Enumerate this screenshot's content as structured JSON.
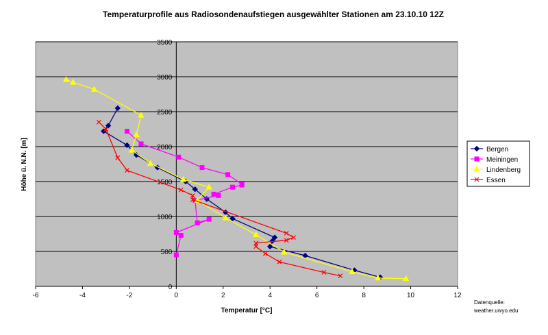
{
  "chart_data": {
    "type": "line",
    "title": "Temperaturprofile aus Radiosondenaufstiegen ausgewählter Stationen am 23.10.10 12Z",
    "xlabel": "Temperatur [°C]",
    "ylabel": "Höhe ü. N.N. [m]",
    "xlim": [
      -6,
      12
    ],
    "ylim": [
      0,
      3500
    ],
    "xticks": [
      "-6",
      "-4",
      "-2",
      "0",
      "2",
      "4",
      "6",
      "8",
      "10",
      "12"
    ],
    "yticks": [
      "0",
      "500",
      "1000",
      "1500",
      "2000",
      "2500",
      "3000",
      "3500"
    ],
    "grid": "horizontal",
    "plot_background": "#c0c0c0",
    "legend_position": "right",
    "series": [
      {
        "name": "Bergen",
        "color": "#000080",
        "marker": "diamond",
        "points": [
          [
            8.7,
            130
          ],
          [
            7.6,
            230
          ],
          [
            5.5,
            440
          ],
          [
            4.0,
            570
          ],
          [
            4.1,
            650
          ],
          [
            4.2,
            700
          ],
          [
            2.4,
            970
          ],
          [
            2.1,
            1060
          ],
          [
            1.3,
            1250
          ],
          [
            0.8,
            1390
          ],
          [
            0.4,
            1500
          ],
          [
            -0.8,
            1700
          ],
          [
            -1.7,
            1880
          ],
          [
            -2.1,
            2020
          ],
          [
            -3.1,
            2220
          ],
          [
            -2.9,
            2300
          ],
          [
            -2.5,
            2550
          ]
        ]
      },
      {
        "name": "Meiningen",
        "color": "#ff00ff",
        "marker": "square",
        "points": [
          [
            0,
            450
          ],
          [
            0.2,
            730
          ],
          [
            0,
            770
          ],
          [
            1.4,
            960
          ],
          [
            0.9,
            910
          ],
          [
            0.8,
            1230
          ],
          [
            1.8,
            1300
          ],
          [
            1.6,
            1320
          ],
          [
            2.4,
            1420
          ],
          [
            2.8,
            1450
          ],
          [
            2.8,
            1460
          ],
          [
            2.2,
            1600
          ],
          [
            1.1,
            1700
          ],
          [
            0.1,
            1850
          ],
          [
            -1.5,
            2040
          ],
          [
            -2.1,
            2220
          ]
        ]
      },
      {
        "name": "Lindenberg",
        "color": "#ffff00",
        "marker": "triangle",
        "points": [
          [
            9.8,
            110
          ],
          [
            8.6,
            120
          ],
          [
            7.5,
            210
          ],
          [
            4.6,
            490
          ],
          [
            3.4,
            740
          ],
          [
            2.1,
            980
          ],
          [
            0.9,
            1230
          ],
          [
            1.4,
            1420
          ],
          [
            0.3,
            1530
          ],
          [
            -1.1,
            1760
          ],
          [
            -1.9,
            1950
          ],
          [
            -1.7,
            2170
          ],
          [
            -1.5,
            2450
          ],
          [
            -3.5,
            2820
          ],
          [
            -4.4,
            2920
          ],
          [
            -4.7,
            2960
          ]
        ]
      },
      {
        "name": "Essen",
        "color": "#ff0000",
        "marker": "x",
        "points": [
          [
            7.0,
            150
          ],
          [
            6.3,
            200
          ],
          [
            4.4,
            350
          ],
          [
            3.8,
            470
          ],
          [
            3.4,
            570
          ],
          [
            3.4,
            620
          ],
          [
            4.7,
            660
          ],
          [
            5.0,
            700
          ],
          [
            4.7,
            760
          ],
          [
            0.7,
            1240
          ],
          [
            0.7,
            1300
          ],
          [
            0.2,
            1380
          ],
          [
            -2.1,
            1660
          ],
          [
            -2.5,
            1840
          ],
          [
            -3.0,
            2250
          ],
          [
            -3.3,
            2350
          ]
        ]
      }
    ],
    "source_note": [
      "Datenquelle:",
      "weather.uwyo.edu"
    ]
  }
}
